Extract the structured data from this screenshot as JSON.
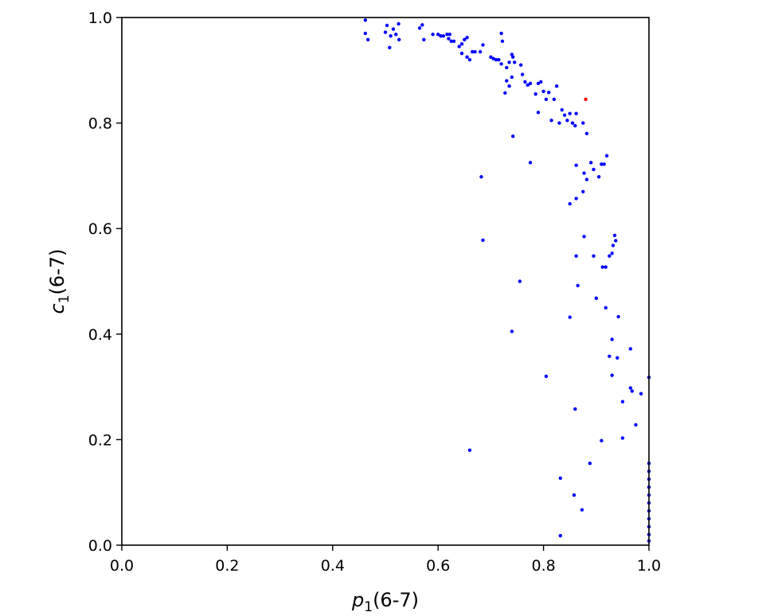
{
  "chart_data": {
    "type": "scatter",
    "title": "",
    "xlabel": {
      "base": "p",
      "sub": "1",
      "rest": "(6-7)"
    },
    "ylabel": {
      "base": "c",
      "sub": "1",
      "rest": "(6-7)"
    },
    "xlim": [
      0.0,
      1.0
    ],
    "ylim": [
      0.0,
      1.0
    ],
    "xticks": [
      "0.0",
      "0.2",
      "0.4",
      "0.6",
      "0.8",
      "1.0"
    ],
    "yticks": [
      "0.0",
      "0.2",
      "0.4",
      "0.6",
      "0.8",
      "1.0"
    ],
    "grid": false,
    "legend": "none",
    "series": [
      {
        "color": "#0000ff",
        "points": [
          [
            0.462,
            0.995
          ],
          [
            0.462,
            0.97
          ],
          [
            0.467,
            0.958
          ],
          [
            0.5,
            0.972
          ],
          [
            0.503,
            0.985
          ],
          [
            0.508,
            0.943
          ],
          [
            0.51,
            0.965
          ],
          [
            0.515,
            0.978
          ],
          [
            0.52,
            0.968
          ],
          [
            0.525,
            0.988
          ],
          [
            0.526,
            0.958
          ],
          [
            0.565,
            0.98
          ],
          [
            0.57,
            0.986
          ],
          [
            0.573,
            0.958
          ],
          [
            0.59,
            0.968
          ],
          [
            0.6,
            0.968
          ],
          [
            0.605,
            0.965
          ],
          [
            0.61,
            0.965
          ],
          [
            0.617,
            0.968
          ],
          [
            0.62,
            0.96
          ],
          [
            0.622,
            0.968
          ],
          [
            0.625,
            0.955
          ],
          [
            0.63,
            0.955
          ],
          [
            0.64,
            0.945
          ],
          [
            0.645,
            0.95
          ],
          [
            0.65,
            0.958
          ],
          [
            0.655,
            0.962
          ],
          [
            0.645,
            0.932
          ],
          [
            0.655,
            0.925
          ],
          [
            0.66,
            0.92
          ],
          [
            0.665,
            0.935
          ],
          [
            0.67,
            0.935
          ],
          [
            0.68,
            0.935
          ],
          [
            0.685,
            0.948
          ],
          [
            0.7,
            0.925
          ],
          [
            0.705,
            0.922
          ],
          [
            0.71,
            0.92
          ],
          [
            0.715,
            0.92
          ],
          [
            0.72,
            0.97
          ],
          [
            0.722,
            0.955
          ],
          [
            0.72,
            0.912
          ],
          [
            0.73,
            0.905
          ],
          [
            0.735,
            0.915
          ],
          [
            0.74,
            0.93
          ],
          [
            0.742,
            0.925
          ],
          [
            0.745,
            0.915
          ],
          [
            0.73,
            0.88
          ],
          [
            0.74,
            0.887
          ],
          [
            0.735,
            0.87
          ],
          [
            0.727,
            0.857
          ],
          [
            0.757,
            0.91
          ],
          [
            0.76,
            0.892
          ],
          [
            0.765,
            0.878
          ],
          [
            0.77,
            0.872
          ],
          [
            0.775,
            0.875
          ],
          [
            0.785,
            0.855
          ],
          [
            0.79,
            0.875
          ],
          [
            0.795,
            0.878
          ],
          [
            0.8,
            0.86
          ],
          [
            0.805,
            0.845
          ],
          [
            0.81,
            0.858
          ],
          [
            0.82,
            0.845
          ],
          [
            0.825,
            0.87
          ],
          [
            0.815,
            0.805
          ],
          [
            0.83,
            0.8
          ],
          [
            0.835,
            0.825
          ],
          [
            0.84,
            0.815
          ],
          [
            0.845,
            0.805
          ],
          [
            0.85,
            0.818
          ],
          [
            0.855,
            0.8
          ],
          [
            0.86,
            0.795
          ],
          [
            0.862,
            0.818
          ],
          [
            0.875,
            0.8
          ],
          [
            0.882,
            0.78
          ],
          [
            0.79,
            0.82
          ],
          [
            0.742,
            0.775
          ],
          [
            0.775,
            0.725
          ],
          [
            0.682,
            0.698
          ],
          [
            0.862,
            0.72
          ],
          [
            0.877,
            0.705
          ],
          [
            0.882,
            0.693
          ],
          [
            0.89,
            0.725
          ],
          [
            0.895,
            0.712
          ],
          [
            0.905,
            0.698
          ],
          [
            0.91,
            0.722
          ],
          [
            0.915,
            0.722
          ],
          [
            0.92,
            0.738
          ],
          [
            0.862,
            0.657
          ],
          [
            0.875,
            0.67
          ],
          [
            0.85,
            0.647
          ],
          [
            0.685,
            0.578
          ],
          [
            0.877,
            0.585
          ],
          [
            0.862,
            0.548
          ],
          [
            0.895,
            0.548
          ],
          [
            0.912,
            0.527
          ],
          [
            0.918,
            0.527
          ],
          [
            0.925,
            0.548
          ],
          [
            0.93,
            0.553
          ],
          [
            0.932,
            0.568
          ],
          [
            0.937,
            0.577
          ],
          [
            0.935,
            0.587
          ],
          [
            0.755,
            0.5
          ],
          [
            0.865,
            0.492
          ],
          [
            0.9,
            0.468
          ],
          [
            0.918,
            0.45
          ],
          [
            0.942,
            0.433
          ],
          [
            0.85,
            0.432
          ],
          [
            0.74,
            0.405
          ],
          [
            0.93,
            0.39
          ],
          [
            0.925,
            0.358
          ],
          [
            0.94,
            0.355
          ],
          [
            0.965,
            0.372
          ],
          [
            0.93,
            0.322
          ],
          [
            0.805,
            0.32
          ],
          [
            0.965,
            0.298
          ],
          [
            0.968,
            0.292
          ],
          [
            0.985,
            0.287
          ],
          [
            0.95,
            0.272
          ],
          [
            0.86,
            0.258
          ],
          [
            0.975,
            0.228
          ],
          [
            0.95,
            0.203
          ],
          [
            0.91,
            0.198
          ],
          [
            0.66,
            0.18
          ],
          [
            0.888,
            0.155
          ],
          [
            0.832,
            0.127
          ],
          [
            0.858,
            0.095
          ],
          [
            0.873,
            0.067
          ],
          [
            0.832,
            0.018
          ],
          [
            1.0,
            0.318
          ],
          [
            1.0,
            0.155
          ],
          [
            1.0,
            0.14
          ],
          [
            1.0,
            0.125
          ],
          [
            1.0,
            0.11
          ],
          [
            1.0,
            0.095
          ],
          [
            1.0,
            0.08
          ],
          [
            1.0,
            0.065
          ],
          [
            1.0,
            0.05
          ],
          [
            1.0,
            0.035
          ],
          [
            1.0,
            0.02
          ],
          [
            1.0,
            0.008
          ]
        ]
      },
      {
        "color": "#ff0000",
        "points": [
          [
            0.88,
            0.845
          ]
        ]
      }
    ]
  }
}
